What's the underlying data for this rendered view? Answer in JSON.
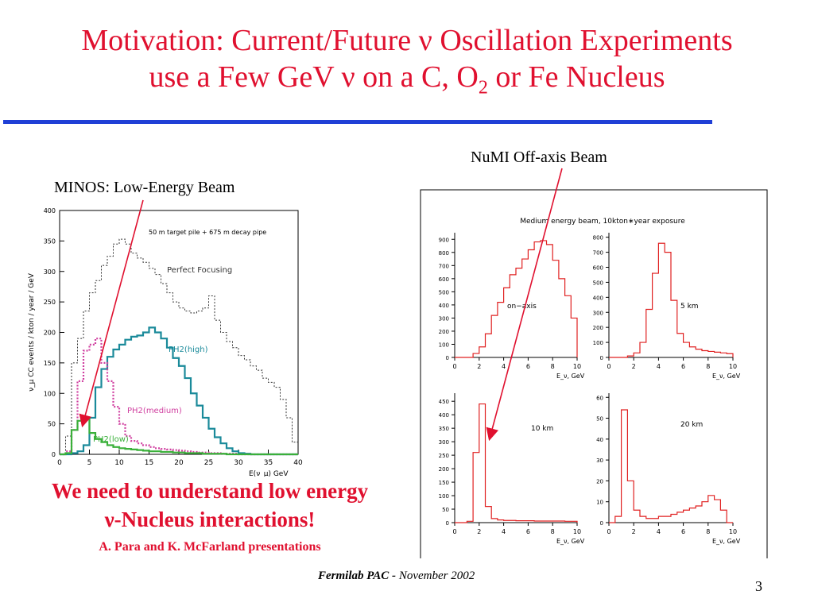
{
  "slide": {
    "title_line1": "Motivation: Current/Future ν Oscillation Experiments",
    "title_line2_a": "use a Few GeV ν on a C, O",
    "title_line2_sub": "2",
    "title_line2_b": " or Fe Nucleus",
    "label_minos": "MINOS: Low-Energy Beam",
    "label_numi": "NuMI Off-axis Beam",
    "message_line1": "We need to understand low energy",
    "message_line2": "ν-Nucleus interactions!",
    "message_line3": "A. Para and K. McFarland presentations",
    "footer_bold": "Fermilab PAC - ",
    "footer_date": "November 2002",
    "page_number": "3"
  },
  "chart_data": [
    {
      "type": "line",
      "id": "minos",
      "annotation": "50 m target pile + 675 m decay pipe",
      "xlabel": "E(ν_μ) GeV",
      "ylabel": "ν_μ CC events / kton / year / GeV",
      "xlim": [
        0,
        40
      ],
      "ylim": [
        0,
        400
      ],
      "xticks": [
        0,
        5,
        10,
        15,
        20,
        25,
        30,
        35,
        40
      ],
      "yticks": [
        0,
        50,
        100,
        150,
        200,
        250,
        300,
        350,
        400
      ],
      "series": [
        {
          "name": "Perfect Focusing",
          "color": "#333333",
          "x": [
            0,
            1,
            2,
            3,
            4,
            5,
            6,
            7,
            8,
            9,
            10,
            11,
            12,
            13,
            14,
            15,
            16,
            17,
            18,
            19,
            20,
            21,
            22,
            23,
            24,
            25,
            26,
            27,
            28,
            29,
            30,
            31,
            32,
            33,
            34,
            35,
            36,
            37,
            38,
            39,
            40
          ],
          "y": [
            0,
            30,
            150,
            190,
            235,
            265,
            285,
            310,
            325,
            345,
            353,
            345,
            330,
            322,
            315,
            305,
            295,
            280,
            265,
            250,
            240,
            235,
            232,
            235,
            240,
            260,
            220,
            200,
            185,
            175,
            162,
            155,
            145,
            138,
            125,
            118,
            110,
            90,
            60,
            20,
            0
          ]
        },
        {
          "name": "PH2(high)",
          "color": "#1a8a9a",
          "x": [
            0,
            1,
            2,
            3,
            4,
            5,
            6,
            7,
            8,
            9,
            10,
            11,
            12,
            13,
            14,
            15,
            16,
            17,
            18,
            19,
            20,
            21,
            22,
            23,
            24,
            25,
            26,
            27,
            28,
            29,
            30,
            31,
            32,
            33,
            34,
            35,
            36,
            37,
            38,
            39,
            40
          ],
          "y": [
            0,
            0,
            2,
            5,
            15,
            60,
            110,
            140,
            160,
            172,
            180,
            188,
            193,
            195,
            200,
            208,
            200,
            190,
            175,
            158,
            145,
            125,
            100,
            80,
            60,
            42,
            28,
            18,
            10,
            5,
            2,
            1,
            0,
            0,
            0,
            0,
            0,
            0,
            0,
            0,
            0
          ]
        },
        {
          "name": "PH2(medium)",
          "color": "#d040a0",
          "x": [
            0,
            1,
            2,
            3,
            4,
            5,
            6,
            7,
            8,
            9,
            10,
            11,
            12,
            13,
            14,
            15,
            16,
            17,
            18,
            19,
            20,
            21,
            22,
            23,
            24,
            25,
            26,
            27,
            28,
            29,
            30,
            31,
            32,
            33,
            34,
            35,
            36,
            37,
            38,
            39,
            40
          ],
          "y": [
            0,
            5,
            40,
            120,
            170,
            180,
            190,
            150,
            120,
            78,
            50,
            30,
            22,
            18,
            15,
            12,
            10,
            9,
            8,
            7,
            6,
            5,
            4,
            3,
            3,
            2,
            2,
            1,
            1,
            1,
            0,
            0,
            0,
            0,
            0,
            0,
            0,
            0,
            0,
            0,
            0
          ]
        },
        {
          "name": "PH2(low)",
          "color": "#3ab03a",
          "x": [
            0,
            1,
            2,
            3,
            4,
            5,
            6,
            7,
            8,
            9,
            10,
            11,
            12,
            13,
            14,
            15,
            16,
            17,
            18,
            19,
            20,
            21,
            22,
            23,
            24,
            25,
            26,
            27,
            28,
            29,
            30,
            31,
            32,
            33,
            34,
            35,
            36,
            37,
            38,
            39,
            40
          ],
          "y": [
            0,
            2,
            40,
            55,
            58,
            35,
            25,
            20,
            15,
            12,
            10,
            9,
            8,
            7,
            6,
            5,
            5,
            4,
            4,
            3,
            3,
            2,
            2,
            2,
            1,
            1,
            1,
            1,
            0,
            0,
            0,
            0,
            0,
            0,
            0,
            0,
            0,
            0,
            0,
            0,
            0
          ]
        }
      ]
    },
    {
      "type": "bar",
      "id": "on-axis",
      "overall_title": "Medium energy beam, 10kton∗year exposure",
      "label": "on−axis",
      "xlabel": "E_ν, GeV",
      "xlim": [
        0,
        10
      ],
      "ylim": [
        0,
        950
      ],
      "xticks": [
        0,
        2,
        4,
        6,
        8,
        10
      ],
      "yticks": [
        0,
        100,
        200,
        300,
        400,
        500,
        600,
        700,
        800,
        900
      ],
      "bin_width": 0.5,
      "bin_starts": [
        0,
        0.5,
        1,
        1.5,
        2,
        2.5,
        3,
        3.5,
        4,
        4.5,
        5,
        5.5,
        6,
        6.5,
        7,
        7.5,
        8,
        8.5,
        9,
        9.5
      ],
      "values": [
        0,
        0,
        0,
        30,
        80,
        180,
        320,
        420,
        530,
        630,
        680,
        750,
        820,
        880,
        890,
        860,
        740,
        600,
        470,
        300
      ]
    },
    {
      "type": "bar",
      "id": "5km",
      "label": "5 km",
      "xlabel": "E_ν, GeV",
      "xlim": [
        0,
        10
      ],
      "ylim": [
        0,
        830
      ],
      "xticks": [
        0,
        2,
        4,
        6,
        8,
        10
      ],
      "yticks": [
        0,
        100,
        200,
        300,
        400,
        500,
        600,
        700,
        800
      ],
      "bin_width": 0.5,
      "bin_starts": [
        0,
        0.5,
        1,
        1.5,
        2,
        2.5,
        3,
        3.5,
        4,
        4.5,
        5,
        5.5,
        6,
        6.5,
        7,
        7.5,
        8,
        8.5,
        9,
        9.5
      ],
      "values": [
        0,
        0,
        0,
        10,
        30,
        100,
        320,
        560,
        760,
        700,
        380,
        160,
        100,
        70,
        55,
        45,
        40,
        35,
        30,
        25
      ]
    },
    {
      "type": "bar",
      "id": "10km",
      "label": "10 km",
      "xlabel": "E_ν, GeV",
      "xlim": [
        0,
        10
      ],
      "ylim": [
        0,
        480
      ],
      "xticks": [
        0,
        2,
        4,
        6,
        8,
        10
      ],
      "yticks": [
        0,
        50,
        100,
        150,
        200,
        250,
        300,
        350,
        400,
        450
      ],
      "bin_width": 0.5,
      "bin_starts": [
        0,
        0.5,
        1,
        1.5,
        2,
        2.5,
        3,
        3.5,
        4,
        4.5,
        5,
        5.5,
        6,
        6.5,
        7,
        7.5,
        8,
        8.5,
        9,
        9.5
      ],
      "values": [
        0,
        0,
        5,
        260,
        440,
        60,
        15,
        10,
        8,
        8,
        7,
        7,
        7,
        6,
        6,
        6,
        6,
        6,
        5,
        5
      ]
    },
    {
      "type": "bar",
      "id": "20km",
      "label": "20 km",
      "xlabel": "E_ν, GeV",
      "xlim": [
        0,
        10
      ],
      "ylim": [
        0,
        62
      ],
      "xticks": [
        0,
        2,
        4,
        6,
        8,
        10
      ],
      "yticks": [
        0,
        10,
        20,
        30,
        40,
        50,
        60
      ],
      "bin_width": 0.5,
      "bin_starts": [
        0,
        0.5,
        1,
        1.5,
        2,
        2.5,
        3,
        3.5,
        4,
        4.5,
        5,
        5.5,
        6,
        6.5,
        7,
        7.5,
        8,
        8.5,
        9,
        9.5
      ],
      "values": [
        0,
        3,
        54,
        20,
        6,
        3,
        2,
        2,
        3,
        3,
        4,
        5,
        6,
        7,
        8,
        10,
        13,
        11,
        6,
        0
      ]
    }
  ]
}
